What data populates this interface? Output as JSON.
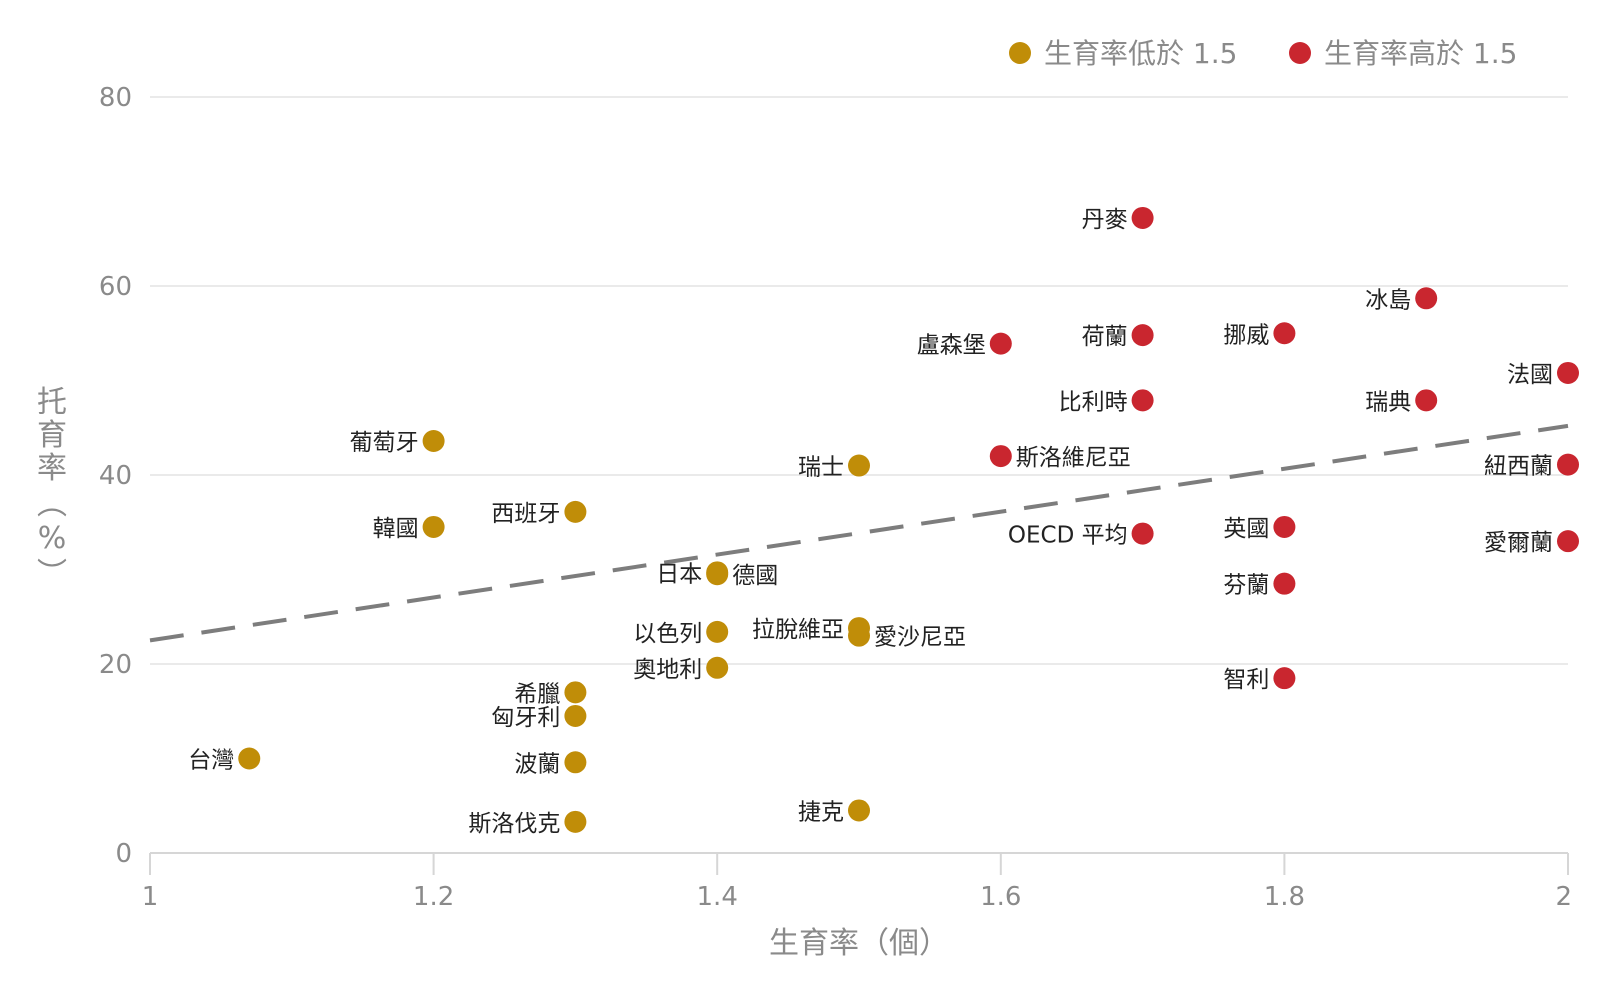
{
  "colors": {
    "low": "#c08d08",
    "high": "#c9262f",
    "trend": "#7d7d7d",
    "grid": "#e3e3e3",
    "axis_text": "#8a8a8a"
  },
  "chart_data": {
    "type": "scatter",
    "xlabel": "生育率（個）",
    "ylabel": "托育率（%）",
    "xlim": [
      1,
      2
    ],
    "ylim": [
      0,
      80
    ],
    "xticks": [
      "1",
      "1.2",
      "1.4",
      "1.6",
      "1.8",
      "2"
    ],
    "yticks": [
      "0",
      "20",
      "40",
      "60",
      "80"
    ],
    "grid": "horizontal",
    "legend_position": "top-right",
    "trendline": {
      "style": "dashed",
      "x": [
        1,
        2
      ],
      "y": [
        22.5,
        45.2
      ]
    },
    "series": [
      {
        "name": "生育率低於 1.5",
        "color": "#c08d08",
        "points": [
          {
            "label": "台灣",
            "x": 1.07,
            "y": 10.0,
            "side": "left"
          },
          {
            "label": "葡萄牙",
            "x": 1.2,
            "y": 43.6,
            "side": "left"
          },
          {
            "label": "韓國",
            "x": 1.2,
            "y": 34.5,
            "side": "left"
          },
          {
            "label": "西班牙",
            "x": 1.3,
            "y": 36.1,
            "side": "left"
          },
          {
            "label": "希臘",
            "x": 1.3,
            "y": 17.0,
            "side": "left"
          },
          {
            "label": "匈牙利",
            "x": 1.3,
            "y": 14.5,
            "side": "left"
          },
          {
            "label": "波蘭",
            "x": 1.3,
            "y": 9.6,
            "side": "left"
          },
          {
            "label": "斯洛伐克",
            "x": 1.3,
            "y": 3.3,
            "side": "left"
          },
          {
            "label": "日本",
            "x": 1.4,
            "y": 29.7,
            "side": "left"
          },
          {
            "label": "德國",
            "x": 1.4,
            "y": 29.5,
            "side": "right"
          },
          {
            "label": "以色列",
            "x": 1.4,
            "y": 23.4,
            "side": "left"
          },
          {
            "label": "奧地利",
            "x": 1.4,
            "y": 19.6,
            "side": "left"
          },
          {
            "label": "瑞士",
            "x": 1.5,
            "y": 41.0,
            "side": "left"
          },
          {
            "label": "拉脫維亞",
            "x": 1.5,
            "y": 23.8,
            "side": "left"
          },
          {
            "label": "愛沙尼亞",
            "x": 1.5,
            "y": 23.0,
            "side": "right"
          },
          {
            "label": "捷克",
            "x": 1.5,
            "y": 4.5,
            "side": "left"
          }
        ]
      },
      {
        "name": "生育率高於 1.5",
        "color": "#c9262f",
        "points": [
          {
            "label": "盧森堡",
            "x": 1.6,
            "y": 53.9,
            "side": "left"
          },
          {
            "label": "斯洛維尼亞",
            "x": 1.6,
            "y": 42.0,
            "side": "right"
          },
          {
            "label": "丹麥",
            "x": 1.7,
            "y": 67.2,
            "side": "left"
          },
          {
            "label": "荷蘭",
            "x": 1.7,
            "y": 54.8,
            "side": "left"
          },
          {
            "label": "比利時",
            "x": 1.7,
            "y": 47.9,
            "side": "left"
          },
          {
            "label": "OECD 平均",
            "x": 1.7,
            "y": 33.8,
            "side": "left"
          },
          {
            "label": "挪威",
            "x": 1.8,
            "y": 55.0,
            "side": "left"
          },
          {
            "label": "英國",
            "x": 1.8,
            "y": 34.5,
            "side": "left"
          },
          {
            "label": "芬蘭",
            "x": 1.8,
            "y": 28.5,
            "side": "left"
          },
          {
            "label": "智利",
            "x": 1.8,
            "y": 18.5,
            "side": "left"
          },
          {
            "label": "冰島",
            "x": 1.9,
            "y": 58.7,
            "side": "left"
          },
          {
            "label": "瑞典",
            "x": 1.9,
            "y": 47.9,
            "side": "left"
          },
          {
            "label": "法國",
            "x": 2.0,
            "y": 50.8,
            "side": "left"
          },
          {
            "label": "紐西蘭",
            "x": 2.0,
            "y": 41.1,
            "side": "left"
          },
          {
            "label": "愛爾蘭",
            "x": 2.0,
            "y": 33.0,
            "side": "left"
          }
        ]
      }
    ]
  }
}
